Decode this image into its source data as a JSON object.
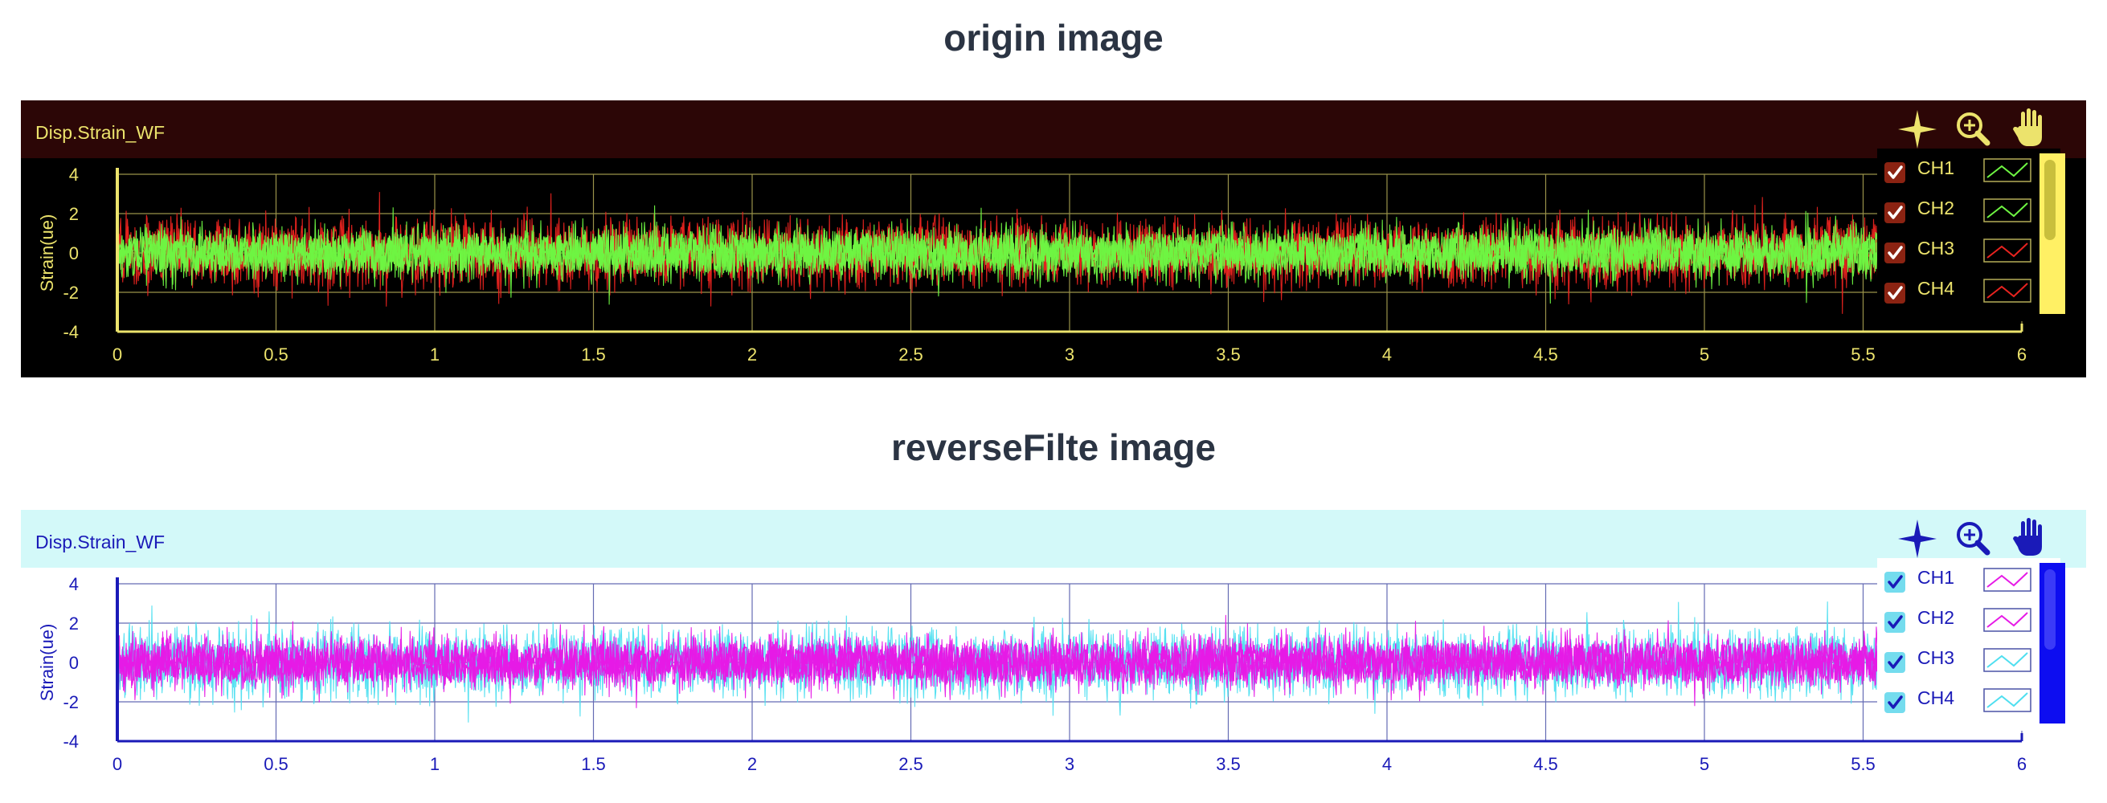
{
  "headings": {
    "top": "origin image",
    "bottom": "reverseFilte image"
  },
  "chart_data": [
    {
      "type": "line",
      "panel": "origin",
      "title": "Disp.Strain_WF",
      "xlabel": "",
      "ylabel": "Strain(ue)",
      "xlim": [
        0,
        6
      ],
      "ylim": [
        -4,
        4
      ],
      "x_ticks": [
        "0",
        "0.5",
        "1",
        "1.5",
        "2",
        "2.5",
        "3",
        "3.5",
        "4",
        "4.5",
        "5",
        "5.5",
        "6"
      ],
      "y_ticks": [
        "4",
        "2",
        "0",
        "-2",
        "-4"
      ],
      "grid": true,
      "legend_position": "top-right",
      "x_data_range": [
        0,
        5.55
      ],
      "series": [
        {
          "name": "CH1",
          "color": "#6ef542",
          "checked": true,
          "amplitude": 1.6
        },
        {
          "name": "CH2",
          "color": "#6ef542",
          "checked": true,
          "amplitude": 1.6
        },
        {
          "name": "CH3",
          "color": "#e8231f",
          "checked": true,
          "amplitude": 2.0
        },
        {
          "name": "CH4",
          "color": "#e8231f",
          "checked": true,
          "amplitude": 2.0
        }
      ],
      "toolbar_icons": [
        "crosshair-icon",
        "zoom-in-icon",
        "pan-hand-icon"
      ],
      "colors": {
        "header_bg": "#2c0606",
        "plot_bg": "#000000",
        "text": "#ece36c",
        "grid": "#b5ad58",
        "legend_bg": "#000000",
        "checkbox_bg": "#8b2312",
        "scrollbar": "#fff064",
        "scroll_thumb": "#c9bf3c"
      }
    },
    {
      "type": "line",
      "panel": "reverse",
      "title": "Disp.Strain_WF",
      "xlabel": "",
      "ylabel": "Strain(ue)",
      "xlim": [
        0,
        6
      ],
      "ylim": [
        -4,
        4
      ],
      "x_ticks": [
        "0",
        "0.5",
        "1",
        "1.5",
        "2",
        "2.5",
        "3",
        "3.5",
        "4",
        "4.5",
        "5",
        "5.5",
        "6"
      ],
      "y_ticks": [
        "4",
        "2",
        "0",
        "-2",
        "-4"
      ],
      "grid": true,
      "legend_position": "top-right",
      "x_data_range": [
        0,
        5.55
      ],
      "series": [
        {
          "name": "CH1",
          "color": "#e61ae6",
          "checked": true,
          "amplitude": 1.6
        },
        {
          "name": "CH2",
          "color": "#e61ae6",
          "checked": true,
          "amplitude": 1.6
        },
        {
          "name": "CH3",
          "color": "#4fdff0",
          "checked": true,
          "amplitude": 2.0
        },
        {
          "name": "CH4",
          "color": "#4fdff0",
          "checked": true,
          "amplitude": 2.0
        }
      ],
      "toolbar_icons": [
        "crosshair-icon",
        "zoom-in-icon",
        "pan-hand-icon"
      ],
      "colors": {
        "header_bg": "#d3f9f9",
        "plot_bg": "#ffffff",
        "text": "#1a1ab8",
        "grid": "#4a52a6",
        "legend_bg": "#ffffff",
        "checkbox_bg": "#74dcee",
        "scrollbar": "#0d0df0",
        "scroll_thumb": "#3a3af8"
      }
    }
  ]
}
